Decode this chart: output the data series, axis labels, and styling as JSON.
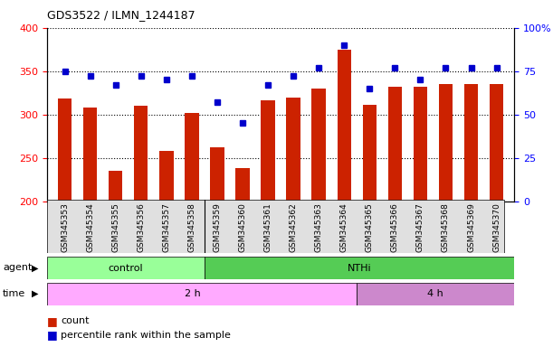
{
  "title": "GDS3522 / ILMN_1244187",
  "samples": [
    "GSM345353",
    "GSM345354",
    "GSM345355",
    "GSM345356",
    "GSM345357",
    "GSM345358",
    "GSM345359",
    "GSM345360",
    "GSM345361",
    "GSM345362",
    "GSM345363",
    "GSM345364",
    "GSM345365",
    "GSM345366",
    "GSM345367",
    "GSM345368",
    "GSM345369",
    "GSM345370"
  ],
  "bar_values": [
    318,
    308,
    235,
    310,
    258,
    302,
    262,
    238,
    316,
    320,
    330,
    375,
    311,
    332,
    332,
    335,
    335,
    335
  ],
  "percentile_values": [
    75,
    72,
    67,
    72,
    70,
    72,
    57,
    45,
    67,
    72,
    77,
    90,
    65,
    77,
    70,
    77,
    77,
    77
  ],
  "ylim_left": [
    200,
    400
  ],
  "ylim_right": [
    0,
    100
  ],
  "yticks_left": [
    200,
    250,
    300,
    350,
    400
  ],
  "yticks_right": [
    0,
    25,
    50,
    75,
    100
  ],
  "bar_color": "#cc2200",
  "dot_color": "#0000cc",
  "agent_control_color": "#99ff99",
  "agent_nthi_color": "#55cc55",
  "time_2h_color": "#ffaaff",
  "time_4h_color": "#cc88cc",
  "agent_label": "agent",
  "time_label": "time",
  "control_label": "control",
  "nthi_label": "NTHi",
  "time_2h_label": "2 h",
  "time_4h_label": "4 h",
  "legend_count": "count",
  "legend_percentile": "percentile rank within the sample",
  "n_control": 6,
  "n_nthi_2h": 6,
  "n_nthi_4h": 6,
  "n_total": 18
}
